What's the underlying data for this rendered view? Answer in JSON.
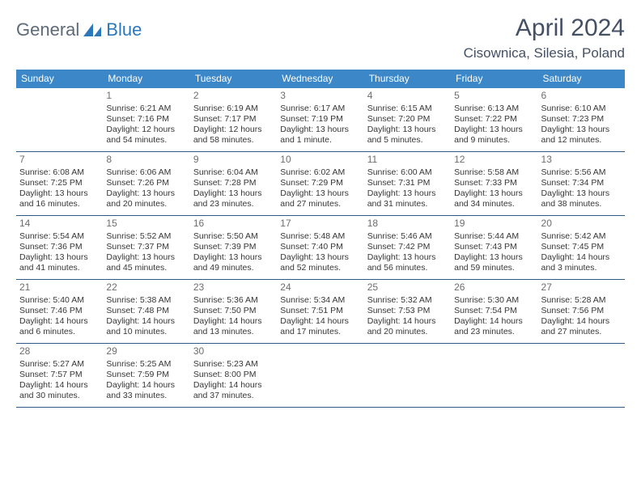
{
  "brand": {
    "general": "General",
    "blue": "Blue"
  },
  "title": {
    "month": "April 2024",
    "location": "Cisownica, Silesia, Poland"
  },
  "weekdays": [
    "Sunday",
    "Monday",
    "Tuesday",
    "Wednesday",
    "Thursday",
    "Friday",
    "Saturday"
  ],
  "colors": {
    "header_bar": "#3b87c8",
    "header_text": "#ffffff",
    "rule": "#2f5a85",
    "title_text": "#455065",
    "body_text": "#363636",
    "daynum_text": "#6d6d6d",
    "logo_gray": "#5e6a78",
    "logo_blue": "#2d78bb"
  },
  "weeks": [
    [
      {
        "n": "",
        "lines": []
      },
      {
        "n": "1",
        "lines": [
          "Sunrise: 6:21 AM",
          "Sunset: 7:16 PM",
          "Daylight: 12 hours and 54 minutes."
        ]
      },
      {
        "n": "2",
        "lines": [
          "Sunrise: 6:19 AM",
          "Sunset: 7:17 PM",
          "Daylight: 12 hours and 58 minutes."
        ]
      },
      {
        "n": "3",
        "lines": [
          "Sunrise: 6:17 AM",
          "Sunset: 7:19 PM",
          "Daylight: 13 hours and 1 minute."
        ]
      },
      {
        "n": "4",
        "lines": [
          "Sunrise: 6:15 AM",
          "Sunset: 7:20 PM",
          "Daylight: 13 hours and 5 minutes."
        ]
      },
      {
        "n": "5",
        "lines": [
          "Sunrise: 6:13 AM",
          "Sunset: 7:22 PM",
          "Daylight: 13 hours and 9 minutes."
        ]
      },
      {
        "n": "6",
        "lines": [
          "Sunrise: 6:10 AM",
          "Sunset: 7:23 PM",
          "Daylight: 13 hours and 12 minutes."
        ]
      }
    ],
    [
      {
        "n": "7",
        "lines": [
          "Sunrise: 6:08 AM",
          "Sunset: 7:25 PM",
          "Daylight: 13 hours and 16 minutes."
        ]
      },
      {
        "n": "8",
        "lines": [
          "Sunrise: 6:06 AM",
          "Sunset: 7:26 PM",
          "Daylight: 13 hours and 20 minutes."
        ]
      },
      {
        "n": "9",
        "lines": [
          "Sunrise: 6:04 AM",
          "Sunset: 7:28 PM",
          "Daylight: 13 hours and 23 minutes."
        ]
      },
      {
        "n": "10",
        "lines": [
          "Sunrise: 6:02 AM",
          "Sunset: 7:29 PM",
          "Daylight: 13 hours and 27 minutes."
        ]
      },
      {
        "n": "11",
        "lines": [
          "Sunrise: 6:00 AM",
          "Sunset: 7:31 PM",
          "Daylight: 13 hours and 31 minutes."
        ]
      },
      {
        "n": "12",
        "lines": [
          "Sunrise: 5:58 AM",
          "Sunset: 7:33 PM",
          "Daylight: 13 hours and 34 minutes."
        ]
      },
      {
        "n": "13",
        "lines": [
          "Sunrise: 5:56 AM",
          "Sunset: 7:34 PM",
          "Daylight: 13 hours and 38 minutes."
        ]
      }
    ],
    [
      {
        "n": "14",
        "lines": [
          "Sunrise: 5:54 AM",
          "Sunset: 7:36 PM",
          "Daylight: 13 hours and 41 minutes."
        ]
      },
      {
        "n": "15",
        "lines": [
          "Sunrise: 5:52 AM",
          "Sunset: 7:37 PM",
          "Daylight: 13 hours and 45 minutes."
        ]
      },
      {
        "n": "16",
        "lines": [
          "Sunrise: 5:50 AM",
          "Sunset: 7:39 PM",
          "Daylight: 13 hours and 49 minutes."
        ]
      },
      {
        "n": "17",
        "lines": [
          "Sunrise: 5:48 AM",
          "Sunset: 7:40 PM",
          "Daylight: 13 hours and 52 minutes."
        ]
      },
      {
        "n": "18",
        "lines": [
          "Sunrise: 5:46 AM",
          "Sunset: 7:42 PM",
          "Daylight: 13 hours and 56 minutes."
        ]
      },
      {
        "n": "19",
        "lines": [
          "Sunrise: 5:44 AM",
          "Sunset: 7:43 PM",
          "Daylight: 13 hours and 59 minutes."
        ]
      },
      {
        "n": "20",
        "lines": [
          "Sunrise: 5:42 AM",
          "Sunset: 7:45 PM",
          "Daylight: 14 hours and 3 minutes."
        ]
      }
    ],
    [
      {
        "n": "21",
        "lines": [
          "Sunrise: 5:40 AM",
          "Sunset: 7:46 PM",
          "Daylight: 14 hours and 6 minutes."
        ]
      },
      {
        "n": "22",
        "lines": [
          "Sunrise: 5:38 AM",
          "Sunset: 7:48 PM",
          "Daylight: 14 hours and 10 minutes."
        ]
      },
      {
        "n": "23",
        "lines": [
          "Sunrise: 5:36 AM",
          "Sunset: 7:50 PM",
          "Daylight: 14 hours and 13 minutes."
        ]
      },
      {
        "n": "24",
        "lines": [
          "Sunrise: 5:34 AM",
          "Sunset: 7:51 PM",
          "Daylight: 14 hours and 17 minutes."
        ]
      },
      {
        "n": "25",
        "lines": [
          "Sunrise: 5:32 AM",
          "Sunset: 7:53 PM",
          "Daylight: 14 hours and 20 minutes."
        ]
      },
      {
        "n": "26",
        "lines": [
          "Sunrise: 5:30 AM",
          "Sunset: 7:54 PM",
          "Daylight: 14 hours and 23 minutes."
        ]
      },
      {
        "n": "27",
        "lines": [
          "Sunrise: 5:28 AM",
          "Sunset: 7:56 PM",
          "Daylight: 14 hours and 27 minutes."
        ]
      }
    ],
    [
      {
        "n": "28",
        "lines": [
          "Sunrise: 5:27 AM",
          "Sunset: 7:57 PM",
          "Daylight: 14 hours and 30 minutes."
        ]
      },
      {
        "n": "29",
        "lines": [
          "Sunrise: 5:25 AM",
          "Sunset: 7:59 PM",
          "Daylight: 14 hours and 33 minutes."
        ]
      },
      {
        "n": "30",
        "lines": [
          "Sunrise: 5:23 AM",
          "Sunset: 8:00 PM",
          "Daylight: 14 hours and 37 minutes."
        ]
      },
      {
        "n": "",
        "lines": []
      },
      {
        "n": "",
        "lines": []
      },
      {
        "n": "",
        "lines": []
      },
      {
        "n": "",
        "lines": []
      }
    ]
  ]
}
